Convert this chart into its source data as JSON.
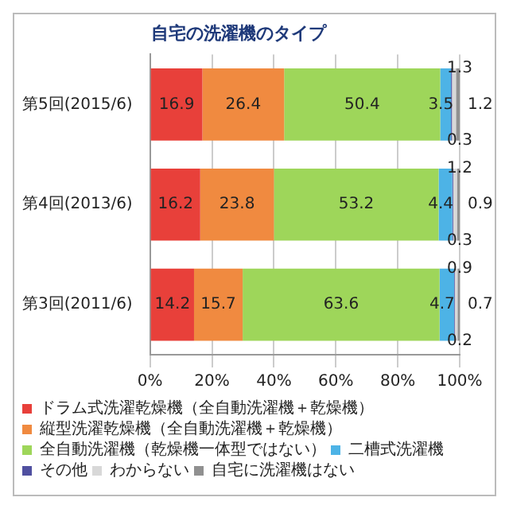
{
  "chart_data": {
    "type": "bar",
    "orientation": "horizontal",
    "stacked": true,
    "title": "自宅の洗濯機のタイプ",
    "categories": [
      "第5回(2015/6)",
      "第4回(2013/6)",
      "第3回(2011/6)"
    ],
    "series": [
      {
        "name": "ドラム式洗濯乾燥機（全自動洗濯機＋乾燥機）",
        "color": "#e8403a",
        "values": [
          16.9,
          16.2,
          14.2
        ]
      },
      {
        "name": "縦型洗濯乾燥機（全自動洗濯機＋乾燥機）",
        "color": "#f08a40",
        "values": [
          26.4,
          23.8,
          15.7
        ]
      },
      {
        "name": "全自動洗濯機（乾燥機一体型ではない）",
        "color": "#9ed65a",
        "values": [
          50.4,
          53.2,
          63.6
        ]
      },
      {
        "name": "二槽式洗濯機",
        "color": "#4db3e6",
        "values": [
          3.5,
          4.4,
          4.7
        ]
      },
      {
        "name": "その他",
        "color": "#5050a0",
        "values": [
          0.3,
          0.3,
          0.2
        ]
      },
      {
        "name": "わからない",
        "color": "#d8d8d8",
        "values": [
          1.3,
          1.2,
          0.9
        ]
      },
      {
        "name": "自宅に洗濯機はない",
        "color": "#909090",
        "values": [
          1.2,
          0.9,
          0.7
        ]
      }
    ],
    "xlim": [
      0,
      100
    ],
    "xticks": [
      {
        "value": 0,
        "label": "0%"
      },
      {
        "value": 20,
        "label": "20%"
      },
      {
        "value": 40,
        "label": "40%"
      },
      {
        "value": 60,
        "label": "60%"
      },
      {
        "value": 80,
        "label": "80%"
      },
      {
        "value": 100,
        "label": "100%"
      }
    ],
    "grid": "x",
    "legend": "bottom",
    "data_labels": true
  }
}
